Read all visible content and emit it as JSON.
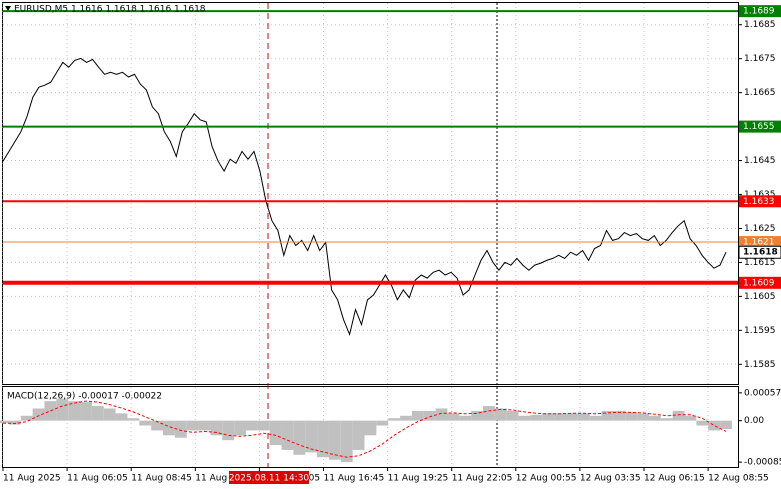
{
  "chart_data": [
    {
      "type": "line",
      "title": "EURUSD,M5  1.1616 1.1618 1.1616 1.1618",
      "color": "#000000",
      "values": [
        1.16448,
        1.16477,
        1.16506,
        1.16535,
        1.16579,
        1.16637,
        1.16666,
        1.16672,
        1.16681,
        1.1671,
        1.16739,
        1.16725,
        1.16745,
        1.16751,
        1.16739,
        1.16748,
        1.16725,
        1.16704,
        1.1671,
        1.16704,
        1.1671,
        1.16696,
        1.16704,
        1.16675,
        1.16658,
        1.16608,
        1.16588,
        1.16535,
        1.16506,
        1.16462,
        1.16535,
        1.16559,
        1.16588,
        1.1657,
        1.16564,
        1.16491,
        1.16448,
        1.16419,
        1.16454,
        1.16442,
        1.16477,
        1.16454,
        1.16477,
        1.16419,
        1.16331,
        1.16273,
        1.16244,
        1.16171,
        1.16229,
        1.162,
        1.16215,
        1.16185,
        1.16229,
        1.16185,
        1.16209,
        1.16069,
        1.1604,
        1.15981,
        1.15938,
        1.16011,
        1.15967,
        1.1604,
        1.16054,
        1.16083,
        1.16113,
        1.16083,
        1.1604,
        1.16069,
        1.16046,
        1.16098,
        1.16113,
        1.16104,
        1.16121,
        1.16127,
        1.16113,
        1.16121,
        1.16104,
        1.16054,
        1.16069,
        1.16113,
        1.16156,
        1.16185,
        1.1615,
        1.16127,
        1.1615,
        1.16142,
        1.16162,
        1.16142,
        1.16127,
        1.16142,
        1.16148,
        1.16156,
        1.16162,
        1.16171,
        1.16162,
        1.1618,
        1.16171,
        1.16185,
        1.16156,
        1.16191,
        1.162,
        1.16244,
        1.16215,
        1.1622,
        1.16238,
        1.16229,
        1.16235,
        1.1622,
        1.16215,
        1.16229,
        1.162,
        1.16215,
        1.16238,
        1.16258,
        1.16273,
        1.1622,
        1.162,
        1.16171,
        1.1615,
        1.16133,
        1.16142,
        1.1618
      ],
      "ylim": [
        1.15792,
        1.16914
      ],
      "yticks": [
        1.1685,
        1.1675,
        1.1665,
        1.1655,
        1.1645,
        1.1635,
        1.1625,
        1.1615,
        1.1605,
        1.1595,
        1.1585
      ],
      "grid": true,
      "levels": [
        {
          "value": 1.1689,
          "color": "#008000"
        },
        {
          "value": 1.1655,
          "color": "#008000"
        },
        {
          "value": 1.1633,
          "color": "#ff0000"
        },
        {
          "value": 1.1621,
          "color": "#f08030"
        },
        {
          "value": 1.1609,
          "color": "#ff0000"
        }
      ],
      "current_price": 1.1618,
      "xtick_labels": [
        "11 Aug 2025",
        "11 Aug 06:05",
        "11 Aug 08:45",
        "11 Aug 11:25",
        "11 Aug 14:05",
        "11 Aug 16:45",
        "11 Aug 19:25",
        "11 Aug 22:05",
        "12 Aug 00:55",
        "12 Aug 03:35",
        "12 Aug 06:15",
        "12 Aug 08:55"
      ],
      "crosshair_label": "2025.08.11 14:30"
    },
    {
      "type": "macd",
      "title": "MACD(12,26,9) -0.00017 -0.00022",
      "color": "#c0c0c0",
      "signal_color": "#ff0000",
      "values": [
        -5e-05,
        -8e-05,
        0.0001,
        0.00025,
        0.0004,
        0.00045,
        0.0004,
        0.00038,
        0.0003,
        0.00025,
        0.00015,
        5e-05,
        -0.0001,
        -0.0002,
        -0.0003,
        -0.00035,
        -0.0002,
        -0.0002,
        -0.0003,
        -0.0004,
        -0.0003,
        -0.0002,
        -0.0002,
        -0.0005,
        -0.0006,
        -0.0007,
        -0.00065,
        -0.00075,
        -0.0008,
        -0.00085,
        -0.0006,
        -0.0003,
        -0.0001,
        5e-05,
        0.0001,
        0.0002,
        0.0002,
        0.00025,
        0.00015,
        0.0001,
        0.0002,
        0.0003,
        0.00025,
        0.0002,
        0.0001,
        0.00012,
        0.00015,
        0.00015,
        0.00015,
        0.00015,
        0.0001,
        0.0002,
        0.0002,
        0.00018,
        0.00015,
        0.0001,
        5e-05,
        0.0002,
        0.0001,
        -0.0001,
        -0.0002,
        -0.00017
      ],
      "signal": [
        -5e-05,
        -6e-05,
        -2e-05,
        0.0001,
        0.0002,
        0.0003,
        0.00036,
        0.0004,
        0.00038,
        0.00033,
        0.00026,
        0.00018,
        8e-05,
        -2e-05,
        -0.00012,
        -0.0002,
        -0.00024,
        -0.00022,
        -0.00024,
        -0.0003,
        -0.00032,
        -0.0003,
        -0.00026,
        -0.0003,
        -0.0004,
        -0.0005,
        -0.00058,
        -0.00064,
        -0.0007,
        -0.00075,
        -0.00072,
        -0.00062,
        -0.00048,
        -0.0003,
        -0.00015,
        -2e-05,
        8e-05,
        0.00015,
        0.00016,
        0.00014,
        0.00015,
        0.0002,
        0.00023,
        0.00022,
        0.00018,
        0.00015,
        0.00014,
        0.00014,
        0.00015,
        0.00015,
        0.00014,
        0.00016,
        0.00017,
        0.00017,
        0.00016,
        0.00013,
        0.0001,
        0.00012,
        0.00012,
        5e-05,
        -0.0001,
        -0.00022
      ],
      "ylim": [
        -0.00095,
        0.00069
      ],
      "yticks": [
        0.00057,
        {
          "value": 0,
          "label": "0.00"
        },
        -0.00085
      ]
    }
  ]
}
